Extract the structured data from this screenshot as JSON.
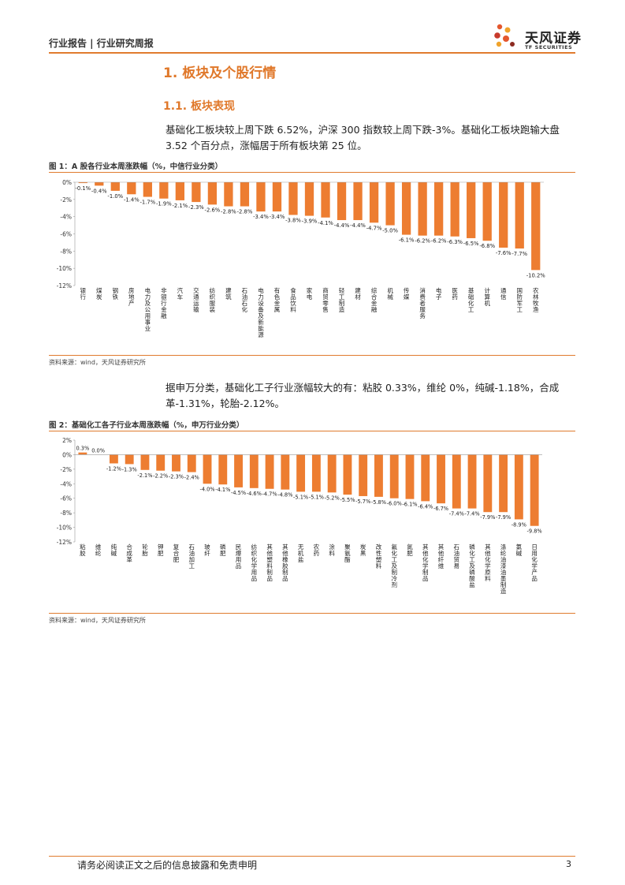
{
  "header": {
    "title": "行业报告 | 行业研究周报",
    "logo_cn": "天风证券",
    "logo_en": "TF SECURITIES"
  },
  "section1": "1. 板块及个股行情",
  "section2": "1.1. 板块表现",
  "para1": "基础化工板块较上周下跌 6.52%，沪深 300 指数较上周下跌-3%。基础化工板块跑输大盘 3.52 个百分点，涨幅居于所有板块第 25 位。",
  "para2": "据申万分类，基础化工子行业涨幅较大的有：粘胶 0.33%，维纶 0%，纯碱-1.18%，合成革-1.31%，轮胎-2.12%。",
  "figure1": {
    "title": "图 1：A 股各行业本周涨跌幅（%，中信行业分类）",
    "source": "资料来源：wind，天风证券研究所"
  },
  "figure2": {
    "title": "图 2：基础化工各子行业本周涨跌幅（%，申万行业分类）",
    "source": "资料来源：wind，天风证券研究所"
  },
  "footer": {
    "disclaimer": "请务必阅读正文之后的信息披露和免责申明",
    "page": "3"
  },
  "colors": {
    "accent": "#e07b2e",
    "bar": "#ed7d31"
  },
  "chart_data": [
    {
      "type": "bar",
      "categories": [
        "银行",
        "煤炭",
        "钢铁",
        "房地产",
        "电力及公用事业",
        "非银行金融",
        "汽车",
        "交通运输",
        "纺织服装",
        "建筑",
        "石油石化",
        "电力设备及新能源",
        "有色金属",
        "食品饮料",
        "家电",
        "商贸零售",
        "轻工制造",
        "建材",
        "综合金融",
        "机械",
        "传媒",
        "消费者服务",
        "电子",
        "医药",
        "基础化工",
        "计算机",
        "通信",
        "国防军工",
        "农林牧渔"
      ],
      "values": [
        -0.1,
        -0.4,
        -1.0,
        -1.4,
        -1.7,
        -1.9,
        -2.1,
        -2.3,
        -2.6,
        -2.8,
        -2.8,
        -3.4,
        -3.4,
        -3.8,
        -3.9,
        -4.1,
        -4.4,
        -4.4,
        -4.7,
        -5.0,
        -6.1,
        -6.2,
        -6.2,
        -6.3,
        -6.5,
        -6.8,
        -7.6,
        -7.7,
        -10.2
      ],
      "labels": [
        "-0.1%",
        "-0.4%",
        "-1.0%",
        "-1.4%",
        "-1.7%",
        "-1.9%",
        "-2.1%",
        "-2.3%",
        "-2.6%",
        "-2.8%",
        "-2.8%",
        "-3.4%",
        "-3.4%",
        "-3.8%",
        "-3.9%",
        "-4.1%",
        "-4.4%",
        "-4.4%",
        "-4.7%",
        "-5.0%",
        "-6.1%",
        "-6.2%",
        "-6.2%",
        "-6.3%",
        "-6.5%",
        "-6.8%",
        "-7.6%",
        "-7.7%",
        "-10.2%"
      ],
      "yticks": [
        "0%",
        "-2%",
        "-4%",
        "-6%",
        "-8%",
        "-10%",
        "-12%"
      ],
      "ylim": [
        -12,
        0
      ]
    },
    {
      "type": "bar",
      "categories": [
        "粘胶",
        "维纶",
        "纯碱",
        "合成革",
        "轮胎",
        "钾肥",
        "复合肥",
        "石油加工",
        "玻纤",
        "磷肥",
        "民爆用品",
        "纺织化学用品",
        "其他塑料制品",
        "其他橡胶制品",
        "无机盐",
        "农药",
        "涂料",
        "聚氨酯",
        "炭黑",
        "改性塑料",
        "氟化工及制冷剂",
        "氮肥",
        "其他化学制品",
        "其他纤维",
        "石油贸易",
        "磷化工及磷酸盐",
        "其他化学原料",
        "涤纶油漆油墨制造",
        "氯碱",
        "日用化学产品"
      ],
      "values": [
        0.3,
        0.0,
        -1.2,
        -1.3,
        -2.1,
        -2.2,
        -2.3,
        -2.4,
        -4.0,
        -4.1,
        -4.5,
        -4.6,
        -4.7,
        -4.8,
        -5.1,
        -5.1,
        -5.2,
        -5.5,
        -5.7,
        -5.8,
        -6.0,
        -6.1,
        -6.4,
        -6.7,
        -7.4,
        -7.4,
        -7.9,
        -7.9,
        -8.9,
        -9.8
      ],
      "labels": [
        "0.3%",
        "0.0%",
        "-1.2%",
        "-1.3%",
        "-2.1%",
        "-2.2%",
        "-2.3%",
        "-2.4%",
        "-4.0%",
        "-4.1%",
        "-4.5%",
        "-4.6%",
        "-4.7%",
        "-4.8%",
        "-5.1%",
        "-5.1%",
        "-5.2%",
        "-5.5%",
        "-5.7%",
        "-5.8%",
        "-6.0%",
        "-6.1%",
        "-6.4%",
        "-6.7%",
        "-7.4%",
        "-7.4%",
        "-7.9%",
        "-7.9%",
        "-8.9%",
        "-9.8%"
      ],
      "yticks": [
        "2%",
        "0%",
        "-2%",
        "-4%",
        "-6%",
        "-8%",
        "-10%",
        "-12%"
      ],
      "ylim": [
        -12,
        2
      ]
    }
  ]
}
